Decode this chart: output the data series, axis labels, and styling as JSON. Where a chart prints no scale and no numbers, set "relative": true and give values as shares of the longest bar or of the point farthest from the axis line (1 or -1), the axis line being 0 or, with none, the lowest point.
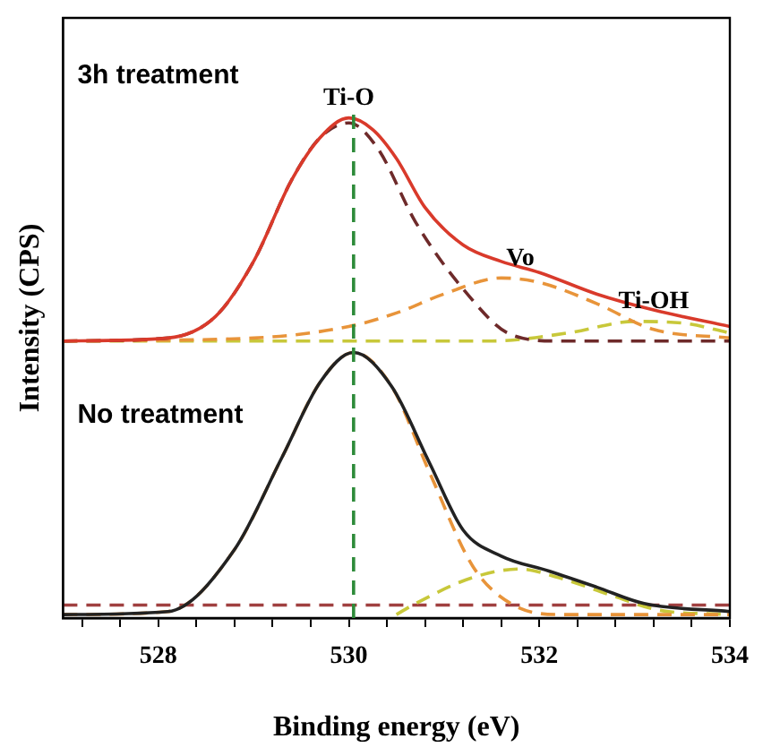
{
  "chart_data": {
    "type": "line",
    "relative": true,
    "xlabel": "Binding energy (eV)",
    "ylabel": "Intensity (CPS)",
    "xlim": [
      527,
      534
    ],
    "xticks": [
      {
        "value": 527.2,
        "label": null
      },
      {
        "value": 527.6,
        "label": null
      },
      528,
      {
        "value": 528.4,
        "label": null
      },
      {
        "value": 528.8,
        "label": null
      },
      {
        "value": 529.2,
        "label": null
      },
      {
        "value": 529.6,
        "label": null
      },
      530,
      {
        "value": 530.4,
        "label": null
      },
      {
        "value": 530.8,
        "label": null
      },
      {
        "value": 531.2,
        "label": null
      },
      {
        "value": 531.6,
        "label": null
      },
      532,
      {
        "value": 532.4,
        "label": null
      },
      {
        "value": 532.8,
        "label": null
      },
      {
        "value": 533.2,
        "label": null
      },
      {
        "value": 533.6,
        "label": null
      },
      534
    ],
    "grid": false,
    "legend": false,
    "marker": "none",
    "series": [
      {
        "color": "#d93a2b",
        "line_style": "solid",
        "x": [
          527,
          528.1,
          528.6,
          529,
          529.4,
          529.7,
          530,
          530.25,
          530.5,
          530.8,
          531.2,
          531.6,
          532,
          532.6,
          533.2,
          534
        ],
        "values": [
          0.554,
          0.56,
          0.603,
          0.713,
          0.876,
          0.961,
          1.0,
          0.977,
          0.919,
          0.821,
          0.746,
          0.713,
          0.691,
          0.648,
          0.616,
          0.583
        ]
      },
      {
        "color": "#6e2a2a",
        "line_style": "dashed",
        "x": [
          527,
          528.1,
          528.6,
          529,
          529.4,
          529.7,
          530,
          530.3,
          530.7,
          531.2,
          531.7,
          532.2,
          534
        ],
        "values": [
          0.554,
          0.56,
          0.603,
          0.713,
          0.876,
          0.961,
          0.99,
          0.94,
          0.792,
          0.658,
          0.567,
          0.554,
          0.554
        ]
      },
      {
        "color": "#e8943a",
        "line_style": "dashed",
        "x": [
          527,
          529,
          530,
          530.5,
          531,
          531.6,
          532,
          532.6,
          533.2,
          534
        ],
        "values": [
          0.554,
          0.56,
          0.583,
          0.61,
          0.648,
          0.68,
          0.671,
          0.629,
          0.577,
          0.56
        ]
      },
      {
        "color": "#c8c83a",
        "line_style": "dashed",
        "x": [
          527,
          531.5,
          532.3,
          533,
          533.5,
          534
        ],
        "values": [
          0.554,
          0.554,
          0.57,
          0.593,
          0.59,
          0.57
        ]
      },
      {
        "color": "#222222",
        "line_style": "solid",
        "x": [
          527,
          528.1,
          528.8,
          529.3,
          529.7,
          530.05,
          530.45,
          530.85,
          531.2,
          531.6,
          532.1,
          532.6,
          533.1,
          534
        ],
        "values": [
          0.007,
          0.013,
          0.137,
          0.322,
          0.472,
          0.531,
          0.463,
          0.309,
          0.176,
          0.124,
          0.094,
          0.062,
          0.029,
          0.013
        ]
      },
      {
        "color": "#e8943a",
        "line_style": "dashed",
        "x": [
          527,
          528.1,
          528.8,
          529.3,
          529.7,
          530.05,
          530.45,
          530.85,
          531.3,
          531.7,
          532.2,
          534
        ],
        "values": [
          0.007,
          0.013,
          0.137,
          0.322,
          0.472,
          0.531,
          0.463,
          0.29,
          0.104,
          0.029,
          0.007,
          0.007
        ]
      },
      {
        "color": "#c8c83a",
        "line_style": "dashed",
        "x": [
          530.5,
          530.7,
          531.3,
          531.8,
          532.2,
          532.75,
          533.25,
          534
        ],
        "values": [
          0.007,
          0.029,
          0.081,
          0.098,
          0.081,
          0.046,
          0.016,
          0.007
        ]
      },
      {
        "color": "#a04040",
        "line_style": "dashed",
        "x": [
          527,
          534
        ],
        "values": [
          0.026,
          0.026
        ]
      }
    ],
    "ref_lines": [
      {
        "axis": "x",
        "value": 530.05,
        "color": "#2e8b3a",
        "line_style": "dashed"
      }
    ],
    "annotations": [
      "3h treatment",
      "No treatment",
      {
        "text": "Ti-O",
        "x": 530,
        "y": 1.0
      },
      {
        "text": "Vo",
        "x": 531.8,
        "y": 0.68
      },
      {
        "text": "Ti-OH",
        "x": 533.2,
        "y": 0.593
      }
    ]
  }
}
